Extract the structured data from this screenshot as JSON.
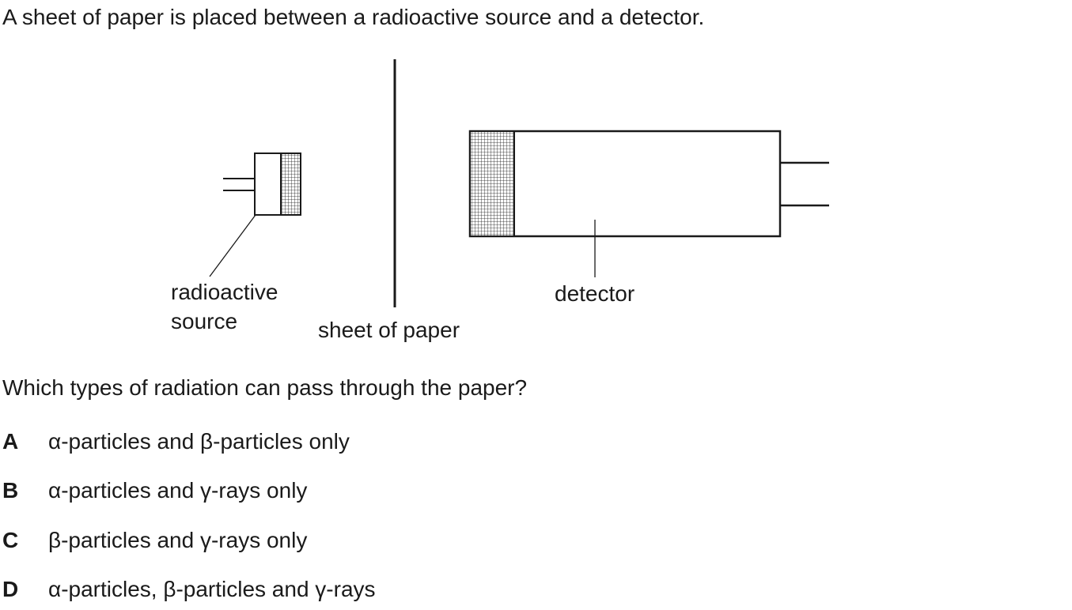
{
  "intro": "A sheet of paper is placed between a radioactive source and a detector.",
  "diagram": {
    "labels": {
      "source_line1": "radioactive",
      "source_line2": "source",
      "paper": "sheet of paper",
      "detector": "detector"
    }
  },
  "question": "Which types of radiation can pass through the paper?",
  "options": [
    {
      "letter": "A",
      "text": "α-particles and β-particles only"
    },
    {
      "letter": "B",
      "text": "α-particles and γ-rays only"
    },
    {
      "letter": "C",
      "text": "β-particles and γ-rays only"
    },
    {
      "letter": "D",
      "text": "α-particles, β-particles and γ-rays"
    }
  ]
}
